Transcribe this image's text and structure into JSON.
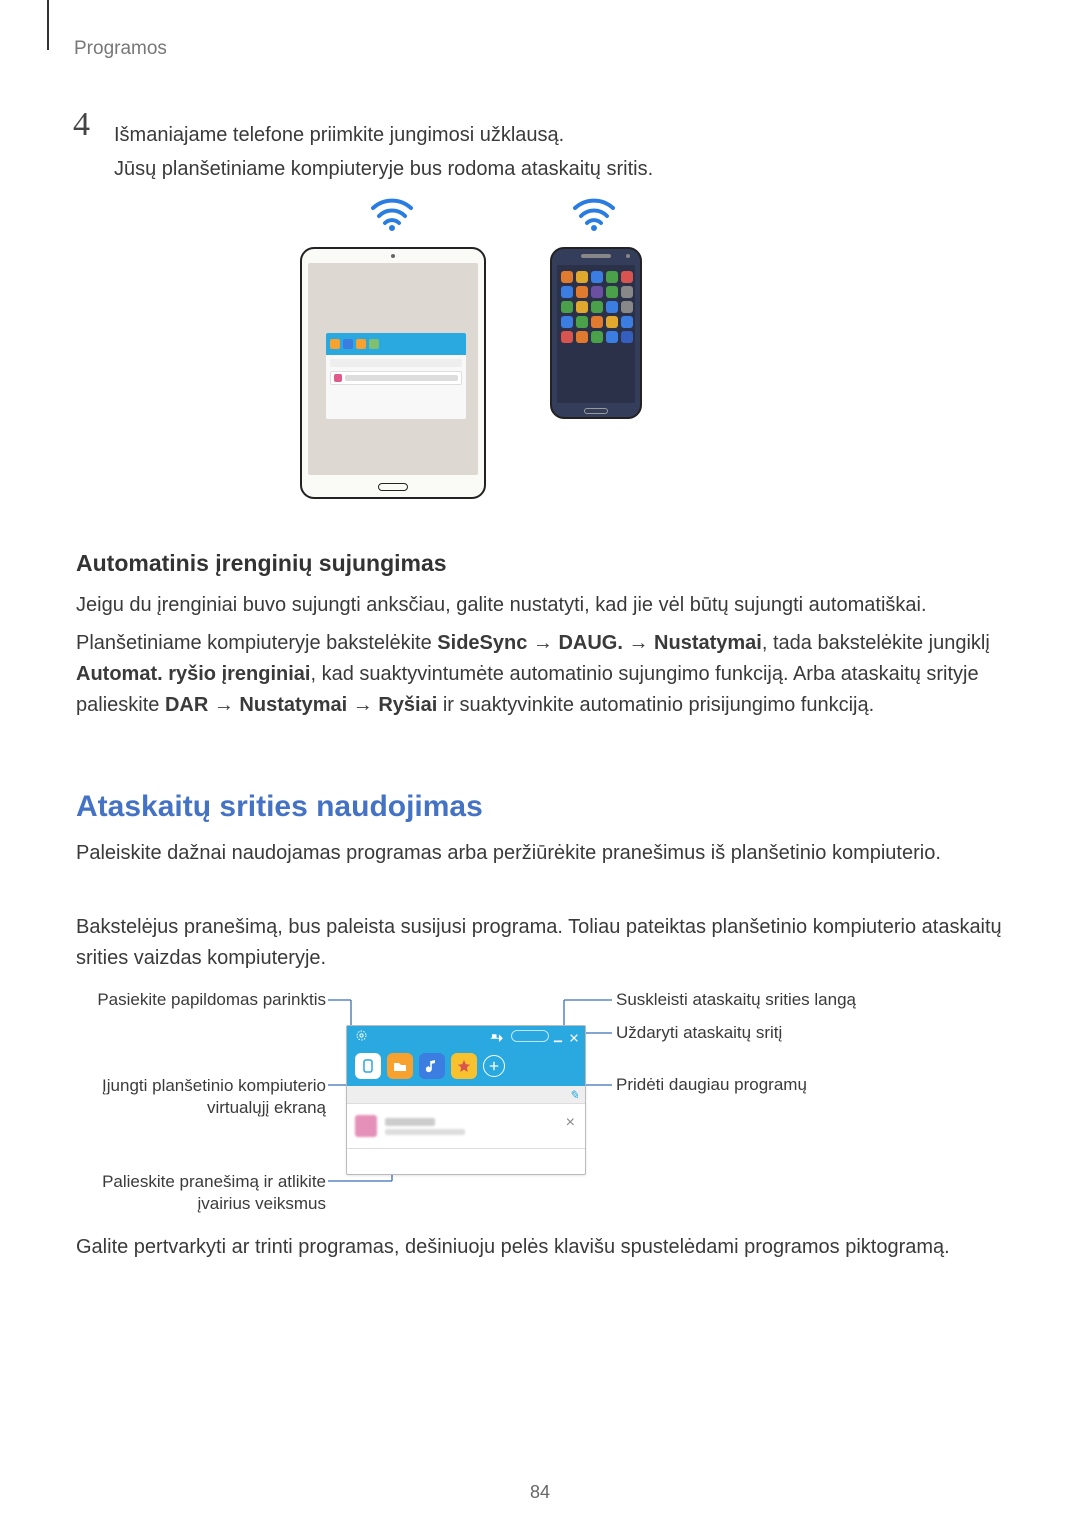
{
  "header": {
    "label": "Programos"
  },
  "step": {
    "number": "4",
    "line1": "Išmaniajame telefone priimkite jungimosi užklausą.",
    "line2": "Jūsų planšetiniame kompiuteryje bus rodoma ataskaitų sritis."
  },
  "section_auto": {
    "title": "Automatinis įrenginių sujungimas",
    "p1": "Jeigu du įrenginiai buvo sujungti anksčiau, galite nustatyti, kad jie vėl būtų sujungti automatiškai.",
    "p2_pre": "Planšetiniame kompiuteryje bakstelėkite ",
    "p2_b1": "SideSync",
    "p2_arrow1": " → ",
    "p2_b2": "DAUG.",
    "p2_arrow2": " → ",
    "p2_b3": "Nustatymai",
    "p2_mid1": ", tada bakstelėkite jungiklį ",
    "p2_b4": "Automat. ryšio įrenginiai",
    "p2_mid2": ", kad suaktyvintumėte automatinio sujungimo funkciją. Arba ataskaitų srityje palieskite ",
    "p2_b5": "DAR",
    "p2_arrow3": " → ",
    "p2_b6": "Nustatymai",
    "p2_arrow4": " → ",
    "p2_b7": "Ryšiai",
    "p2_end": " ir suaktyvinkite automatinio prisijungimo funkciją."
  },
  "section_dash": {
    "title": "Ataskaitų srities naudojimas",
    "p1": "Paleiskite dažnai naudojamas programas arba peržiūrėkite pranešimus iš planšetinio kompiuterio.",
    "p2": "Bakstelėjus pranešimą, bus paleista susijusi programa. Toliau pateiktas planšetinio kompiuterio ataskaitų srities vaizdas kompiuteryje."
  },
  "callouts": {
    "left1": "Pasiekite papildomas parinktis",
    "left2_l1": "Įjungti planšetinio kompiuterio",
    "left2_l2": "virtualųjį ekraną",
    "left3_l1": "Palieskite pranešimą ir atlikite",
    "left3_l2": "įvairius veiksmus",
    "right1": "Suskleisti ataskaitų srities langą",
    "right2": "Uždaryti ataskaitų sritį",
    "right3": "Pridėti daugiau programų"
  },
  "diagram": {
    "colors": {
      "bar_bg": "#2aa9e0",
      "lines": "#3b6fb6",
      "app1_bg": "#ffffff",
      "app1_icon": "#2aa9e0",
      "app2_bg": "#f7a12e",
      "app3_bg": "#3b7de0",
      "app4_bg": "#f7c22e",
      "star": "#d9534f"
    }
  },
  "footer": {
    "p": "Galite pertvarkyti ar trinti programas, dešiniuoju pelės klavišu spustelėdami programos piktogramą.",
    "page": "84"
  },
  "phone_apps": {
    "colors": [
      "#e07a2e",
      "#e0a82e",
      "#3b7de0",
      "#4aa14a",
      "#d9534f",
      "#3b7de0",
      "#e07a2e",
      "#6b4fa1",
      "#4aa14a",
      "#888888",
      "#4aa14a",
      "#e0a82e",
      "#4aa14a",
      "#3b7de0",
      "#888888",
      "#3b7de0",
      "#4aa14a",
      "#e07a2e",
      "#e0a82e",
      "#3b7de0",
      "#d9534f",
      "#e07a2e",
      "#4aa14a",
      "#3b7de0",
      "#355fbf"
    ]
  },
  "tablet_card": {
    "icons": [
      "#f7a12e",
      "#3b7de0",
      "#f7a12e",
      "#7fbf6f"
    ]
  }
}
